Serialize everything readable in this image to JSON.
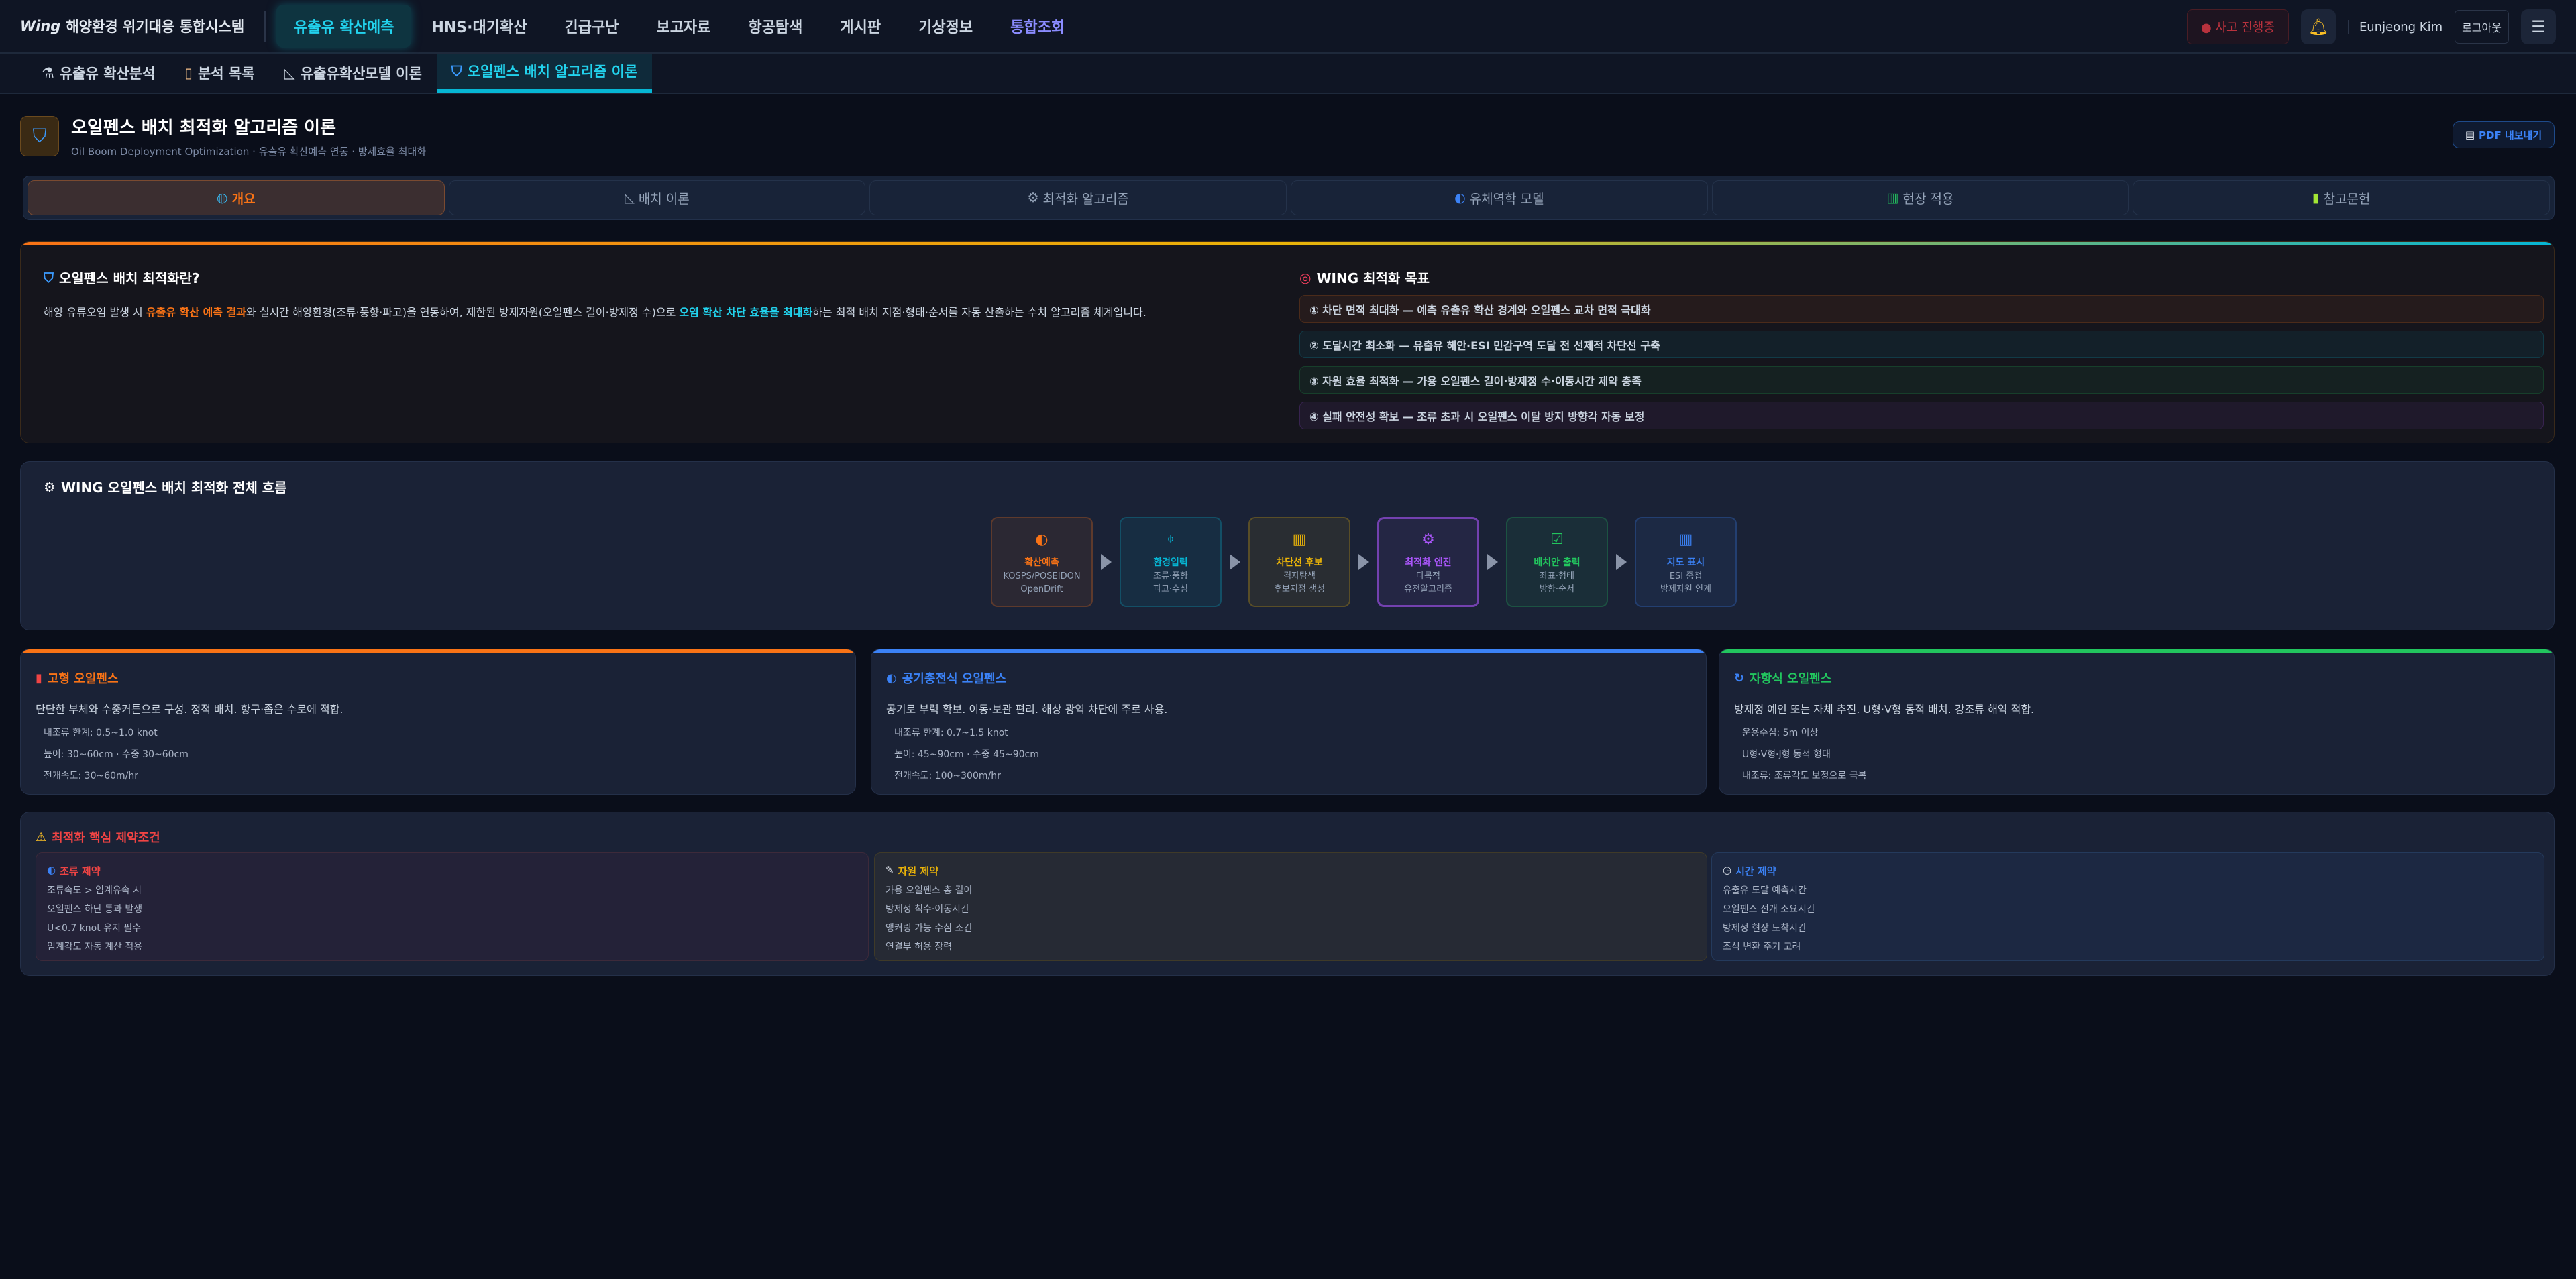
{
  "nav": {
    "logo_mark": "Wing",
    "title": "해양환경 위기대응 통합시스템",
    "items": [
      "유출유 확산예측",
      "HNS·대기확산",
      "긴급구난",
      "보고자료",
      "항공탐색",
      "게시판",
      "기상정보",
      "통합조회"
    ],
    "incident": "사고 진행중",
    "user": "Eunjeong Kim",
    "logout": "로그아웃"
  },
  "subnav": {
    "items": [
      {
        "icon": "microscope-icon",
        "label": "유출유 확산분석"
      },
      {
        "icon": "clipboard-icon",
        "label": "분석 목록"
      },
      {
        "icon": "ruler-triangle-icon",
        "label": "유출유확산모델 이론"
      },
      {
        "icon": "shield-icon",
        "label": "오일펜스 배치 알고리즘 이론"
      }
    ]
  },
  "header": {
    "title": "오일펜스 배치 최적화 알고리즘 이론",
    "subtitle": "Oil Boom Deployment Optimization · 유출유 확산예측 연동 · 방제효율 최대화",
    "pdf": "PDF 내보내기"
  },
  "tabs": [
    {
      "icon": "globe-icon",
      "label": "개요"
    },
    {
      "icon": "ruler-triangle-icon",
      "label": "배치 이론"
    },
    {
      "icon": "gear-icon",
      "label": "최적화 알고리즘"
    },
    {
      "icon": "wave-icon",
      "label": "유체역학 모델"
    },
    {
      "icon": "map-icon",
      "label": "현장 적용"
    },
    {
      "icon": "books-icon",
      "label": "참고문헌"
    }
  ],
  "overview": {
    "title": "오일펜스 배치 최적화란?",
    "text_1": "해양 유류오염 발생 시 ",
    "hl_1": "유출유 확산 예측 결과",
    "text_2": "와 실시간 해양환경(조류·풍향·파고)을 연동하여, 제한된 방제자원(오일펜스 길이·방제정 수)으로 ",
    "hl_2": "오염 확산 차단 효율을 최대화",
    "text_3": "하는 최적 배치 지점·형태·순서를 자동 산출하는 수치 알고리즘 체계입니다.",
    "goals_title": "WING 최적화 목표",
    "goals": [
      {
        "text": "① 차단 면적 최대화 — 예측 유출유 확산 경계와 오일펜스 교차 면적 극대화",
        "color": "#f97316"
      },
      {
        "text": "② 도달시간 최소화 — 유출유 해안·ESI 민감구역 도달 전 선제적 차단선 구축",
        "color": "#06b6d4"
      },
      {
        "text": "③ 자원 효율 최적화 — 가용 오일펜스 길이·방제정 수·이동시간 제약 충족",
        "color": "#22c55e"
      },
      {
        "text": "④ 실패 안전성 확보 — 조류 초과 시 오일펜스 이탈 방지 방향각 자동 보정",
        "color": "#a855f7"
      }
    ]
  },
  "flow": {
    "title": "WING 오일펜스 배치 최적화 전체 흐름",
    "steps": [
      {
        "icon": "wave-icon",
        "title": "확산예측",
        "l1": "KOSPS/POSEIDON",
        "l2": "OpenDrift",
        "color": "#f97316"
      },
      {
        "icon": "satellite-icon",
        "title": "환경입력",
        "l1": "조류·풍향",
        "l2": "파고·수심",
        "color": "#06b6d4"
      },
      {
        "icon": "map-icon",
        "title": "차단선 후보",
        "l1": "격자탐색",
        "l2": "후보지점 생성",
        "color": "#eab308"
      },
      {
        "icon": "gear-icon",
        "title": "최적화 엔진",
        "l1": "다목적",
        "l2": "유전알고리즘",
        "color": "#a855f7"
      },
      {
        "icon": "check-icon",
        "title": "배치안 출력",
        "l1": "좌표·형태",
        "l2": "방향·순서",
        "color": "#22c55e"
      },
      {
        "icon": "map-icon",
        "title": "지도 표시",
        "l1": "ESI 중첩",
        "l2": "방제자원 연계",
        "color": "#3b82f6"
      }
    ]
  },
  "booms": [
    {
      "icon": "fire-extinguisher-icon",
      "title": "고형 오일펜스",
      "color": "#f97316",
      "desc": "단단한 부체와 수중커튼으로 구성. 정적 배치. 항구·좁은 수로에 적합.",
      "specs": [
        "내조류 한계: 0.5~1.0 knot",
        "높이: 30~60cm · 수중 30~60cm",
        "전개속도: 30~60m/hr"
      ]
    },
    {
      "icon": "wave-icon",
      "title": "공기충전식 오일펜스",
      "color": "#3b82f6",
      "desc": "공기로 부력 확보. 이동·보관 편리. 해상 광역 차단에 주로 사용.",
      "specs": [
        "내조류 한계: 0.7~1.5 knot",
        "높이: 45~90cm · 수중 45~90cm",
        "전개속도: 100~300m/hr"
      ]
    },
    {
      "icon": "refresh-icon",
      "title": "자항식 오일펜스",
      "color": "#22c55e",
      "desc": "방제정 예인 또는 자체 추진. U형·V형 동적 배치. 강조류 해역 적합.",
      "specs": [
        "운용수심: 5m 이상",
        "U형·V형·J형 동적 형태",
        "내조류: 조류각도 보정으로 극복"
      ]
    }
  ],
  "constraints": {
    "title": "최적화 핵심 제약조건",
    "boxes": [
      {
        "icon": "wave-icon",
        "title": "조류 제약",
        "color": "#ef4444",
        "lines": [
          "조류속도 > 임계유속 시",
          "오일펜스 하단 통과 발생",
          "U<0.7 knot 유지 필수",
          "임계각도 자동 계산 적용"
        ]
      },
      {
        "icon": "ruler-icon",
        "title": "자원 제약",
        "color": "#eab308",
        "lines": [
          "가용 오일펜스 총 길이",
          "방제정 척수·이동시간",
          "앵커링 가능 수심 조건",
          "연결부 허용 장력"
        ]
      },
      {
        "icon": "clock-icon",
        "title": "시간 제약",
        "color": "#3b82f6",
        "lines": [
          "유출유 도달 예측시간",
          "오일펜스 전개 소요시간",
          "방제정 현장 도착시간",
          "조석 변환 주기 고려"
        ]
      }
    ]
  }
}
